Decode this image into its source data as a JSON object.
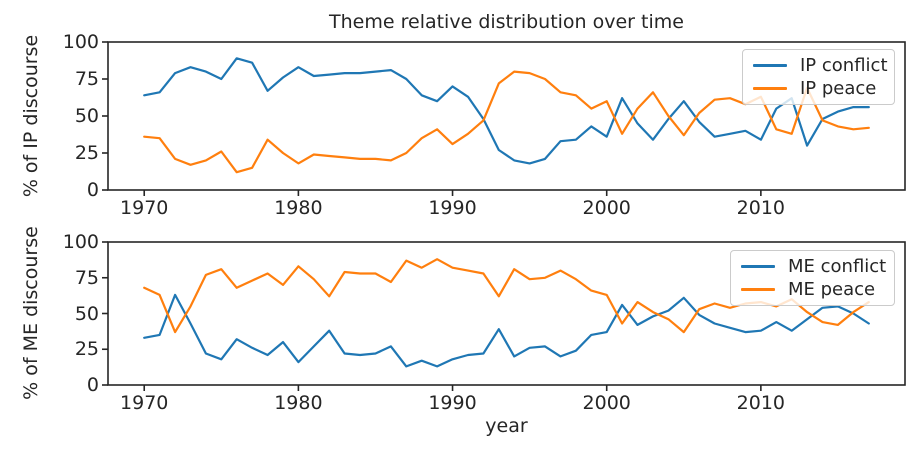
{
  "axis": {
    "x_ticks": [
      1970,
      1980,
      1990,
      2000,
      2010
    ],
    "y_ticks": [
      0,
      25,
      50,
      75,
      100
    ],
    "x_range": [
      1967.65,
      2019.35
    ],
    "y_range": [
      0,
      100
    ]
  },
  "colors": {
    "conflict_blue": "#1f77b4",
    "peace_orange": "#ff7f0e",
    "spine": "#262626",
    "text": "#262626",
    "legend_border": "#cbcbcb"
  },
  "chart_data": [
    {
      "type": "line",
      "title": "Theme relative distribution over time",
      "ylabel": "% of IP discourse",
      "xlabel": "",
      "ylim": [
        0,
        100
      ],
      "grid": false,
      "legend_position": "upper right",
      "x": [
        1970,
        1971,
        1972,
        1973,
        1974,
        1975,
        1976,
        1977,
        1978,
        1979,
        1980,
        1981,
        1982,
        1983,
        1984,
        1985,
        1986,
        1987,
        1988,
        1989,
        1990,
        1991,
        1992,
        1993,
        1994,
        1995,
        1996,
        1997,
        1998,
        1999,
        2000,
        2001,
        2002,
        2003,
        2004,
        2005,
        2006,
        2007,
        2008,
        2009,
        2010,
        2011,
        2012,
        2013,
        2014,
        2015,
        2016,
        2017
      ],
      "series": [
        {
          "name": "IP conflict",
          "color": "#1f77b4",
          "values": [
            64,
            66,
            79,
            83,
            80,
            75,
            89,
            86,
            67,
            76,
            83,
            77,
            78,
            79,
            79,
            80,
            81,
            75,
            64,
            60,
            70,
            63,
            48,
            27,
            20,
            18,
            21,
            33,
            34,
            43,
            36,
            62,
            45,
            34,
            48,
            60,
            46,
            36,
            38,
            40,
            34,
            55,
            62,
            30,
            48,
            53,
            56,
            56
          ]
        },
        {
          "name": "IP peace",
          "color": "#ff7f0e",
          "values": [
            36,
            35,
            21,
            17,
            20,
            26,
            12,
            15,
            34,
            25,
            18,
            24,
            23,
            22,
            21,
            21,
            20,
            25,
            35,
            41,
            31,
            38,
            47,
            72,
            80,
            79,
            75,
            66,
            64,
            55,
            60,
            38,
            55,
            66,
            50,
            37,
            52,
            61,
            62,
            58,
            63,
            41,
            38,
            69,
            47,
            43,
            41,
            42
          ]
        }
      ]
    },
    {
      "type": "line",
      "title": "",
      "ylabel": "% of ME discourse",
      "xlabel": "year",
      "ylim": [
        0,
        100
      ],
      "grid": false,
      "legend_position": "upper right",
      "x": [
        1970,
        1971,
        1972,
        1973,
        1974,
        1975,
        1976,
        1977,
        1978,
        1979,
        1980,
        1981,
        1982,
        1983,
        1984,
        1985,
        1986,
        1987,
        1988,
        1989,
        1990,
        1991,
        1992,
        1993,
        1994,
        1995,
        1996,
        1997,
        1998,
        1999,
        2000,
        2001,
        2002,
        2003,
        2004,
        2005,
        2006,
        2007,
        2008,
        2009,
        2010,
        2011,
        2012,
        2013,
        2014,
        2015,
        2016,
        2017
      ],
      "series": [
        {
          "name": "ME conflict",
          "color": "#1f77b4",
          "values": [
            33,
            35,
            63,
            43,
            22,
            18,
            32,
            26,
            21,
            30,
            16,
            27,
            38,
            22,
            21,
            22,
            27,
            13,
            17,
            13,
            18,
            21,
            22,
            39,
            20,
            26,
            27,
            20,
            24,
            35,
            37,
            56,
            42,
            48,
            52,
            61,
            49,
            43,
            40,
            37,
            38,
            44,
            38,
            46,
            54,
            55,
            50,
            43
          ]
        },
        {
          "name": "ME peace",
          "color": "#ff7f0e",
          "values": [
            68,
            63,
            37,
            55,
            77,
            81,
            68,
            73,
            78,
            70,
            83,
            74,
            62,
            79,
            78,
            78,
            72,
            87,
            82,
            88,
            82,
            80,
            78,
            62,
            81,
            74,
            75,
            80,
            74,
            66,
            63,
            43,
            58,
            51,
            46,
            37,
            53,
            57,
            54,
            57,
            58,
            55,
            60,
            51,
            44,
            42,
            51,
            58
          ]
        }
      ]
    }
  ]
}
